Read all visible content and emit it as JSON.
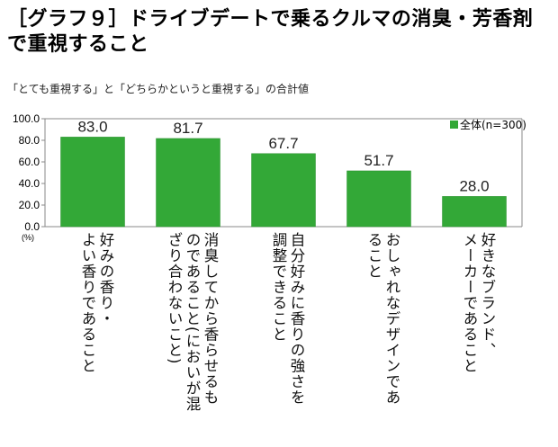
{
  "page": {
    "title": "［グラフ９］ドライブデートで乗るクルマの消臭・芳香剤で重視すること",
    "subtitle": "「とても重視する」と「どちらかというと重視する」の合計値"
  },
  "chart_data": {
    "type": "bar",
    "title": "［グラフ９］ドライブデートで乗るクルマの消臭・芳香剤で重視すること",
    "subtitle": "「とても重視する」と「どちらかというと重視する」の合計値",
    "categories": [
      "好みの香り・\nよい香りであること",
      "消臭してから香らせるも\nのであること(においが混\nざり合わないこと)",
      "自分好みに香りの強さを\n調整できること",
      "おしゃれなデザインであ\nること",
      "好きなブランド、\nメーカーであること"
    ],
    "series": [
      {
        "name": "全体(n=300)",
        "values": [
          83.0,
          81.7,
          67.7,
          51.7,
          28.0
        ]
      }
    ],
    "value_labels": [
      "83.0",
      "81.7",
      "67.7",
      "51.7",
      "28.0"
    ],
    "y_ticks": [
      "0.0",
      "20.0",
      "40.0",
      "60.0",
      "80.0",
      "100.0"
    ],
    "y_unit": "(%)",
    "ylim": [
      0,
      100
    ],
    "grid": false,
    "legend_position": "top-right",
    "colors": {
      "bar": "#33a837",
      "bar_edge": "#2a8f2e",
      "axis": "#888888"
    }
  }
}
